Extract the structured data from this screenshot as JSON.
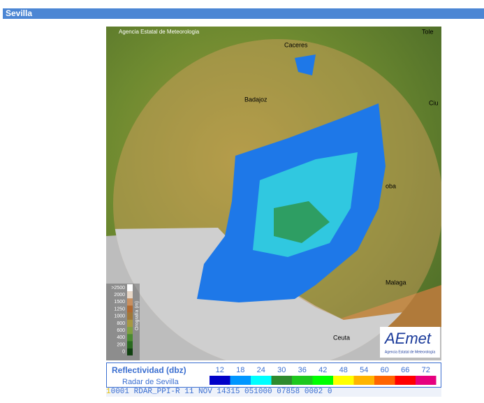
{
  "header": {
    "title": "Sevilla"
  },
  "map": {
    "credit": "Agencia Estatal de Meteorologia",
    "cities": [
      "Caceres",
      "Badajoz",
      "Malaga",
      "Ceuta",
      "Tole",
      "Ciu",
      "oba"
    ],
    "orography": {
      "title": "Orografía (m)",
      "levels": [
        ">2500",
        "2000",
        "1500",
        "1250",
        "1000",
        "800",
        "600",
        "400",
        "200",
        "0"
      ]
    },
    "logo": {
      "name": "AEmet",
      "subtitle": "Agencia Estatal de Meteorología"
    }
  },
  "legend": {
    "title": "Reflectividad (dbz)",
    "subtitle": "Radar de Sevilla",
    "scale": [
      {
        "value": 12,
        "color": "#0000c8"
      },
      {
        "value": 18,
        "color": "#0096ff"
      },
      {
        "value": 24,
        "color": "#00ffff"
      },
      {
        "value": 30,
        "color": "#2e8b2e"
      },
      {
        "value": 36,
        "color": "#1ec81e"
      },
      {
        "value": 42,
        "color": "#00ff00"
      },
      {
        "value": 48,
        "color": "#ffff00"
      },
      {
        "value": 54,
        "color": "#ffb400"
      },
      {
        "value": 60,
        "color": "#ff6400"
      },
      {
        "value": 66,
        "color": "#ff0000"
      },
      {
        "value": 72,
        "color": "#e6007e"
      }
    ]
  },
  "status": {
    "index": "1",
    "text": "0001 RDAR_PPI-R  11 NOV 14315 051000 07858 0002 0"
  }
}
